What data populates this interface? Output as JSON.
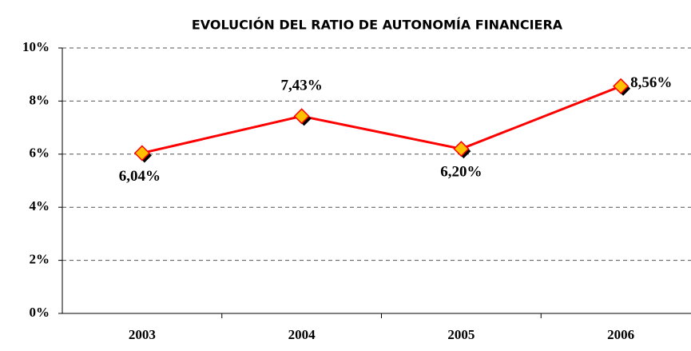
{
  "chart_data": {
    "type": "line",
    "title": "EVOLUCIÓN DEL RATIO DE AUTONOMÍA FINANCIERA",
    "categories": [
      "2003",
      "2004",
      "2005",
      "2006"
    ],
    "series": [
      {
        "name": "Ratio de autonomía financiera",
        "color": "#ff0000",
        "values": [
          6.04,
          7.43,
          6.2,
          8.56
        ],
        "value_labels": [
          "6,04%",
          "7,43%",
          "6,20%",
          "8,56%"
        ]
      }
    ],
    "ylim": [
      0,
      10
    ],
    "yticks": [
      {
        "value": 0,
        "label": "0%"
      },
      {
        "value": 2,
        "label": "2%"
      },
      {
        "value": 4,
        "label": "4%"
      },
      {
        "value": 6,
        "label": "6%"
      },
      {
        "value": 8,
        "label": "8%"
      },
      {
        "value": 10,
        "label": "10%"
      }
    ],
    "grid": true
  }
}
